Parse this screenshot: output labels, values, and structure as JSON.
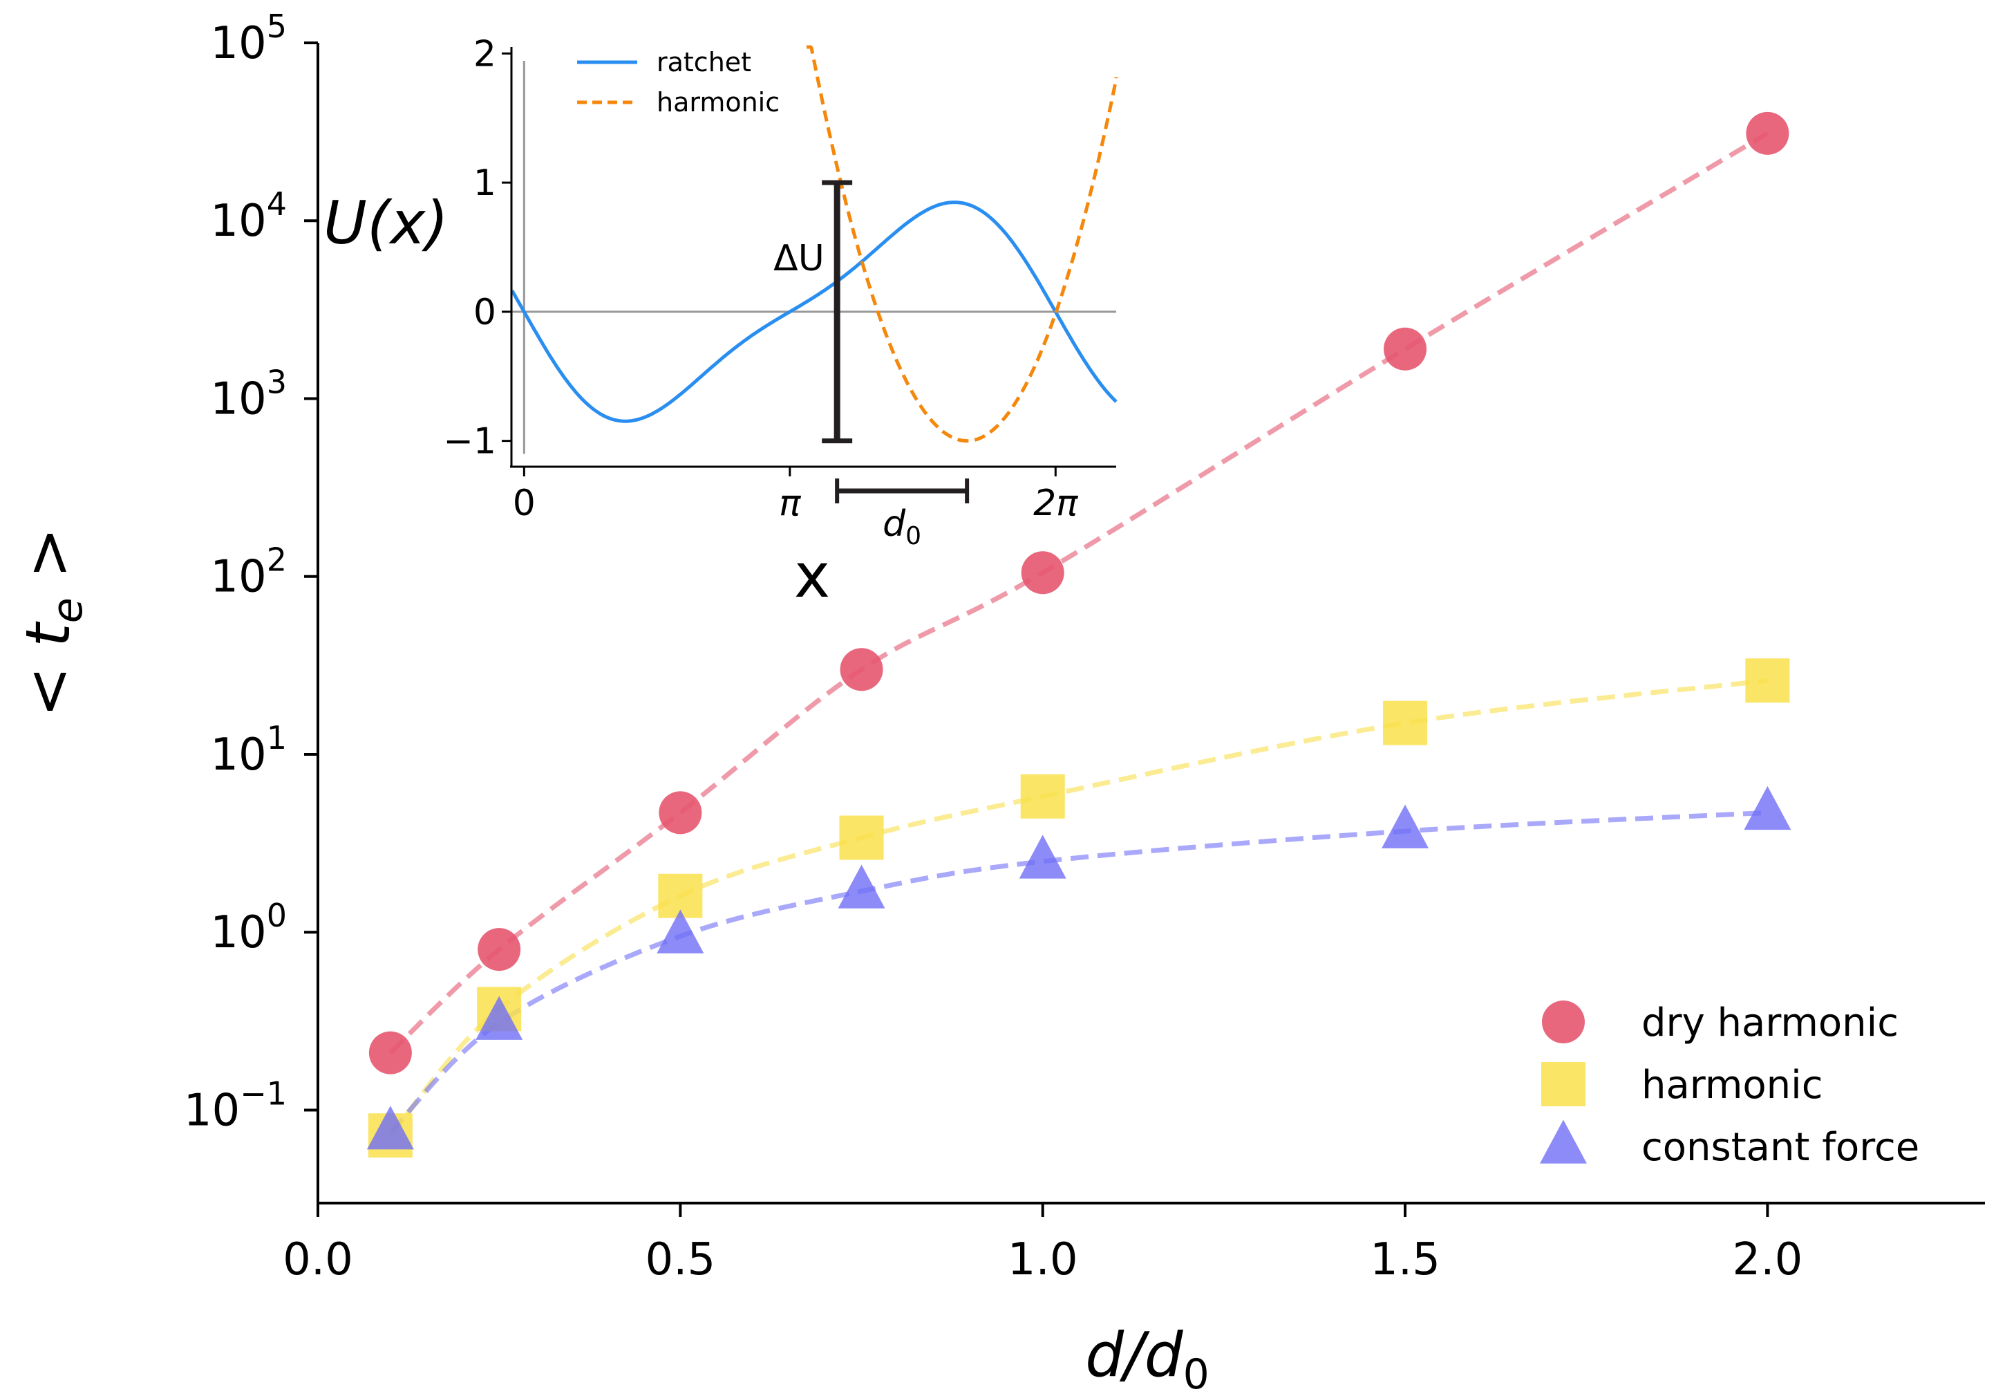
{
  "chart_data": [
    {
      "type": "line",
      "yscale": "log",
      "xlabel": "d/d",
      "xlabel_sub": "0",
      "ylabel": "< t",
      "ylabel_sub": "e",
      "ylabel_close": " >",
      "xlim": [
        0.0,
        2.3
      ],
      "ylim": [
        0.03,
        100000
      ],
      "x_ticks": [
        {
          "value": 0.0,
          "label": "0.0"
        },
        {
          "value": 0.5,
          "label": "0.5"
        },
        {
          "value": 1.0,
          "label": "1.0"
        },
        {
          "value": 1.5,
          "label": "1.5"
        },
        {
          "value": 2.0,
          "label": "2.0"
        }
      ],
      "y_ticks": [
        {
          "value": 0.1,
          "base": "10",
          "exp": "−1"
        },
        {
          "value": 1,
          "base": "10",
          "exp": "0"
        },
        {
          "value": 10,
          "base": "10",
          "exp": "1"
        },
        {
          "value": 100,
          "base": "10",
          "exp": "2"
        },
        {
          "value": 1000,
          "base": "10",
          "exp": "3"
        },
        {
          "value": 10000,
          "base": "10",
          "exp": "4"
        },
        {
          "value": 100000,
          "base": "10",
          "exp": "5"
        }
      ],
      "x": [
        0.1,
        0.25,
        0.5,
        0.75,
        1.0,
        1.5,
        2.0
      ],
      "series": [
        {
          "name": "dry harmonic",
          "marker": "circle",
          "color": "#e5566f",
          "values": [
            0.21,
            0.8,
            4.7,
            30,
            105,
            1900,
            31000
          ]
        },
        {
          "name": "harmonic",
          "marker": "square",
          "color": "#f9e04b",
          "values": [
            0.072,
            0.37,
            1.6,
            3.4,
            5.8,
            15,
            26
          ]
        },
        {
          "name": "constant force",
          "marker": "triangle",
          "color": "#6f6ef6",
          "values": [
            0.075,
            0.31,
            0.95,
            1.7,
            2.5,
            3.7,
            4.7
          ]
        }
      ],
      "legend": "lower-right"
    },
    {
      "type": "line",
      "inset": true,
      "xlabel": "x",
      "ylabel": "U(x)",
      "xlim": [
        -0.15,
        7.0
      ],
      "ylim": [
        -1.2,
        2.05
      ],
      "x_ticks": [
        {
          "value": 0,
          "label": "0"
        },
        {
          "value": 3.14159,
          "label": "π"
        },
        {
          "value": 6.28318,
          "label": "2π"
        }
      ],
      "y_ticks": [
        {
          "value": -1,
          "label": "−1"
        },
        {
          "value": 0,
          "label": "0"
        },
        {
          "value": 1,
          "label": "1"
        },
        {
          "value": 2,
          "label": "2"
        }
      ],
      "series": [
        {
          "name": "ratchet",
          "style": "solid",
          "color": "#2a8ef0",
          "formula": "U(x) = -(sin(x) + 0.25 sin(2x)) / 1.299",
          "x_range": [
            -0.2,
            7.3
          ]
        },
        {
          "name": "harmonic",
          "style": "dashed",
          "color": "#f5870b",
          "formula": "U(x) = -1 + 0.9 (x - 5.236)^2",
          "x_range": [
            3.3,
            7.2
          ]
        }
      ],
      "annotations": {
        "delta_u_label": "ΔU",
        "delta_u_range": [
          -1.0,
          1.0
        ],
        "delta_u_x": 3.7,
        "d0_label": "d",
        "d0_sub": "0",
        "d0_range": [
          3.7,
          5.236
        ]
      },
      "legend": "top-left"
    }
  ]
}
